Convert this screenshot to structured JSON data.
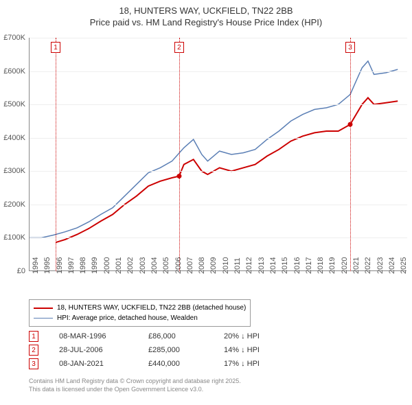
{
  "title": {
    "line1": "18, HUNTERS WAY, UCKFIELD, TN22 2BB",
    "line2": "Price paid vs. HM Land Registry's House Price Index (HPI)"
  },
  "chart": {
    "type": "line",
    "background_color": "#ffffff",
    "grid_color": "#eeeeee",
    "axis_color": "#888888",
    "x": {
      "min": 1994,
      "max": 2025.8,
      "ticks": [
        1994,
        1995,
        1996,
        1997,
        1998,
        1999,
        2000,
        2001,
        2002,
        2003,
        2004,
        2005,
        2006,
        2007,
        2008,
        2009,
        2010,
        2011,
        2012,
        2013,
        2014,
        2015,
        2016,
        2017,
        2018,
        2019,
        2020,
        2021,
        2022,
        2023,
        2024,
        2025
      ],
      "tick_fontsize": 11
    },
    "y": {
      "min": 0,
      "max": 700000,
      "ticks": [
        0,
        100000,
        200000,
        300000,
        400000,
        500000,
        600000,
        700000
      ],
      "tick_labels": [
        "£0",
        "£100K",
        "£200K",
        "£300K",
        "£400K",
        "£500K",
        "£600K",
        "£700K"
      ],
      "tick_fontsize": 11
    },
    "series": [
      {
        "name": "price_paid",
        "label": "18, HUNTERS WAY, UCKFIELD, TN22 2BB (detached house)",
        "color": "#cc0000",
        "line_width": 2,
        "points": [
          [
            1996.2,
            86000
          ],
          [
            1997,
            95000
          ],
          [
            1998,
            110000
          ],
          [
            1999,
            128000
          ],
          [
            2000,
            150000
          ],
          [
            2001,
            170000
          ],
          [
            2002,
            200000
          ],
          [
            2003,
            225000
          ],
          [
            2004,
            255000
          ],
          [
            2005,
            270000
          ],
          [
            2006,
            280000
          ],
          [
            2006.6,
            285000
          ],
          [
            2007,
            320000
          ],
          [
            2007.8,
            335000
          ],
          [
            2008.5,
            300000
          ],
          [
            2009,
            290000
          ],
          [
            2010,
            310000
          ],
          [
            2011,
            300000
          ],
          [
            2012,
            310000
          ],
          [
            2013,
            320000
          ],
          [
            2014,
            345000
          ],
          [
            2015,
            365000
          ],
          [
            2016,
            390000
          ],
          [
            2017,
            405000
          ],
          [
            2018,
            415000
          ],
          [
            2019,
            420000
          ],
          [
            2020,
            420000
          ],
          [
            2021,
            440000
          ],
          [
            2021.5,
            470000
          ],
          [
            2022,
            500000
          ],
          [
            2022.5,
            520000
          ],
          [
            2023,
            500000
          ],
          [
            2024,
            505000
          ],
          [
            2025,
            510000
          ]
        ],
        "markers": [
          {
            "x": 2006.6,
            "y": 285000
          },
          {
            "x": 2021.0,
            "y": 440000
          }
        ]
      },
      {
        "name": "hpi",
        "label": "HPI: Average price, detached house, Wealden",
        "color": "#5b7fb5",
        "line_width": 1.5,
        "points": [
          [
            1994,
            100000
          ],
          [
            1995,
            100000
          ],
          [
            1996,
            108000
          ],
          [
            1997,
            118000
          ],
          [
            1998,
            130000
          ],
          [
            1999,
            148000
          ],
          [
            2000,
            170000
          ],
          [
            2001,
            190000
          ],
          [
            2002,
            225000
          ],
          [
            2003,
            260000
          ],
          [
            2004,
            295000
          ],
          [
            2005,
            310000
          ],
          [
            2006,
            330000
          ],
          [
            2007,
            370000
          ],
          [
            2007.8,
            395000
          ],
          [
            2008.5,
            350000
          ],
          [
            2009,
            330000
          ],
          [
            2010,
            360000
          ],
          [
            2011,
            350000
          ],
          [
            2012,
            355000
          ],
          [
            2013,
            365000
          ],
          [
            2014,
            395000
          ],
          [
            2015,
            420000
          ],
          [
            2016,
            450000
          ],
          [
            2017,
            470000
          ],
          [
            2018,
            485000
          ],
          [
            2019,
            490000
          ],
          [
            2020,
            500000
          ],
          [
            2021,
            530000
          ],
          [
            2021.5,
            570000
          ],
          [
            2022,
            610000
          ],
          [
            2022.5,
            630000
          ],
          [
            2023,
            590000
          ],
          [
            2024,
            595000
          ],
          [
            2025,
            605000
          ]
        ]
      }
    ],
    "events": [
      {
        "n": "1",
        "x": 1996.2,
        "color": "#cc0000",
        "date": "08-MAR-1996",
        "price": "£86,000",
        "diff": "20% ↓ HPI"
      },
      {
        "n": "2",
        "x": 2006.6,
        "color": "#cc0000",
        "date": "28-JUL-2006",
        "price": "£285,000",
        "diff": "14% ↓ HPI"
      },
      {
        "n": "3",
        "x": 2021.0,
        "color": "#cc0000",
        "date": "08-JAN-2021",
        "price": "£440,000",
        "diff": "17% ↓ HPI"
      }
    ]
  },
  "legend": {
    "border_color": "#999999",
    "fontsize": 10
  },
  "footnote": {
    "line1": "Contains HM Land Registry data © Crown copyright and database right 2025.",
    "line2": "This data is licensed under the Open Government Licence v3.0."
  }
}
